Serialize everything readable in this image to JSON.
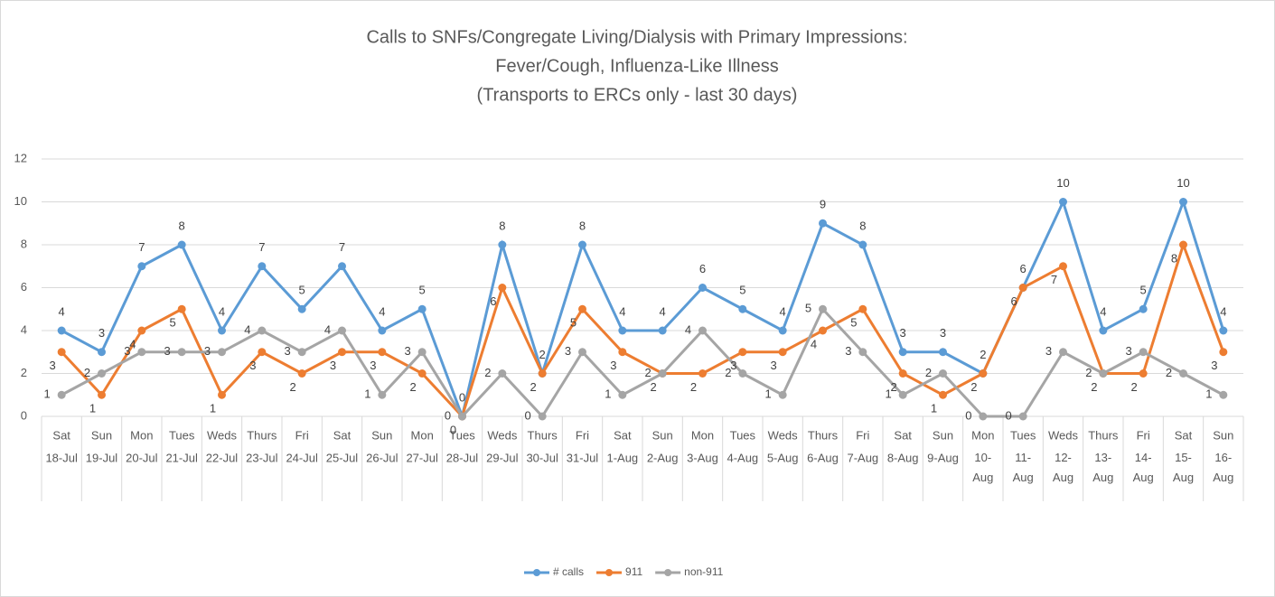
{
  "chart_data": {
    "type": "line",
    "title": [
      "Calls to SNFs/Congregate Living/Dialysis with Primary Impressions:",
      "Fever/Cough, Influenza-Like Illness",
      "(Transports to ERCs only - last 30 days)"
    ],
    "weekdays": [
      "Sat",
      "Sun",
      "Mon",
      "Tues",
      "Weds",
      "Thurs",
      "Fri",
      "Sat",
      "Sun",
      "Mon",
      "Tues",
      "Weds",
      "Thurs",
      "Fri",
      "Sat",
      "Sun",
      "Mon",
      "Tues",
      "Weds",
      "Thurs",
      "Fri",
      "Sat",
      "Sun",
      "Mon",
      "Tues",
      "Weds",
      "Thurs",
      "Fri",
      "Sat",
      "Sun"
    ],
    "categories": [
      "18-Jul",
      "19-Jul",
      "20-Jul",
      "21-Jul",
      "22-Jul",
      "23-Jul",
      "24-Jul",
      "25-Jul",
      "26-Jul",
      "27-Jul",
      "28-Jul",
      "29-Jul",
      "30-Jul",
      "31-Jul",
      "1-Aug",
      "2-Aug",
      "3-Aug",
      "4-Aug",
      "5-Aug",
      "6-Aug",
      "7-Aug",
      "8-Aug",
      "9-Aug",
      "10-Aug",
      "11-Aug",
      "12-Aug",
      "13-Aug",
      "14-Aug",
      "15-Aug",
      "16-Aug"
    ],
    "series": [
      {
        "name": "# calls",
        "color": "#5b9bd5",
        "values": [
          4,
          3,
          7,
          8,
          4,
          7,
          5,
          7,
          4,
          5,
          0,
          8,
          2,
          8,
          4,
          4,
          6,
          5,
          4,
          9,
          8,
          3,
          3,
          2,
          6,
          10,
          4,
          5,
          10,
          4
        ]
      },
      {
        "name": "911",
        "color": "#ed7d31",
        "values": [
          3,
          1,
          4,
          5,
          1,
          3,
          2,
          3,
          3,
          2,
          0,
          6,
          2,
          5,
          3,
          2,
          2,
          3,
          3,
          4,
          5,
          2,
          1,
          2,
          6,
          7,
          2,
          2,
          8,
          3
        ]
      },
      {
        "name": "non-911",
        "color": "#a5a5a5",
        "values": [
          1,
          2,
          3,
          3,
          3,
          4,
          3,
          4,
          1,
          3,
          0,
          2,
          0,
          3,
          1,
          2,
          4,
          2,
          1,
          5,
          3,
          1,
          2,
          0,
          0,
          3,
          2,
          3,
          2,
          1
        ]
      }
    ],
    "ylim": [
      0,
      12
    ],
    "yticks": [
      0,
      2,
      4,
      6,
      8,
      10,
      12
    ],
    "grid": true,
    "legend": "bottom"
  }
}
